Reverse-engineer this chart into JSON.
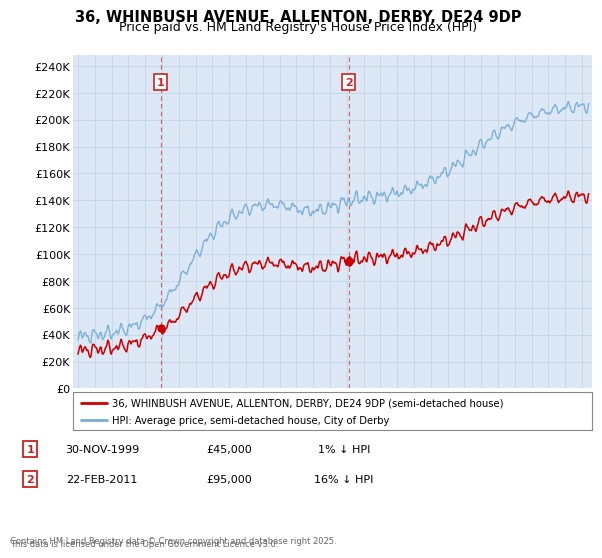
{
  "title": "36, WHINBUSH AVENUE, ALLENTON, DERBY, DE24 9DP",
  "subtitle": "Price paid vs. HM Land Registry's House Price Index (HPI)",
  "ylabel_ticks": [
    0,
    20000,
    40000,
    60000,
    80000,
    100000,
    120000,
    140000,
    160000,
    180000,
    200000,
    220000,
    240000
  ],
  "ylabel_labels": [
    "£0",
    "£20K",
    "£40K",
    "£60K",
    "£80K",
    "£100K",
    "£120K",
    "£140K",
    "£160K",
    "£180K",
    "£200K",
    "£220K",
    "£240K"
  ],
  "ylim": [
    0,
    248000
  ],
  "xlim_start": 1994.7,
  "xlim_end": 2025.6,
  "grid_color": "#c8d8e8",
  "background_color": "#dce8f5",
  "red_line_color": "#cc0000",
  "blue_line_color": "#7aaed6",
  "marker1_x": 1999.92,
  "marker1_y": 45000,
  "marker1_label": "1",
  "marker1_date": "30-NOV-1999",
  "marker1_price": "£45,000",
  "marker1_hpi": "1% ↓ HPI",
  "marker2_x": 2011.12,
  "marker2_y": 95000,
  "marker2_label": "2",
  "marker2_date": "22-FEB-2011",
  "marker2_price": "£95,000",
  "marker2_hpi": "16% ↓ HPI",
  "legend_line1": "36, WHINBUSH AVENUE, ALLENTON, DERBY, DE24 9DP (semi-detached house)",
  "legend_line2": "HPI: Average price, semi-detached house, City of Derby",
  "footnote1": "Contains HM Land Registry data © Crown copyright and database right 2025.",
  "footnote2": "This data is licensed under the Open Government Licence v3.0.",
  "marker_box_color": "#cc2222",
  "title_fontsize": 10.5,
  "subtitle_fontsize": 9,
  "axis_fontsize": 8,
  "dashed_line_color": "#cc4444"
}
